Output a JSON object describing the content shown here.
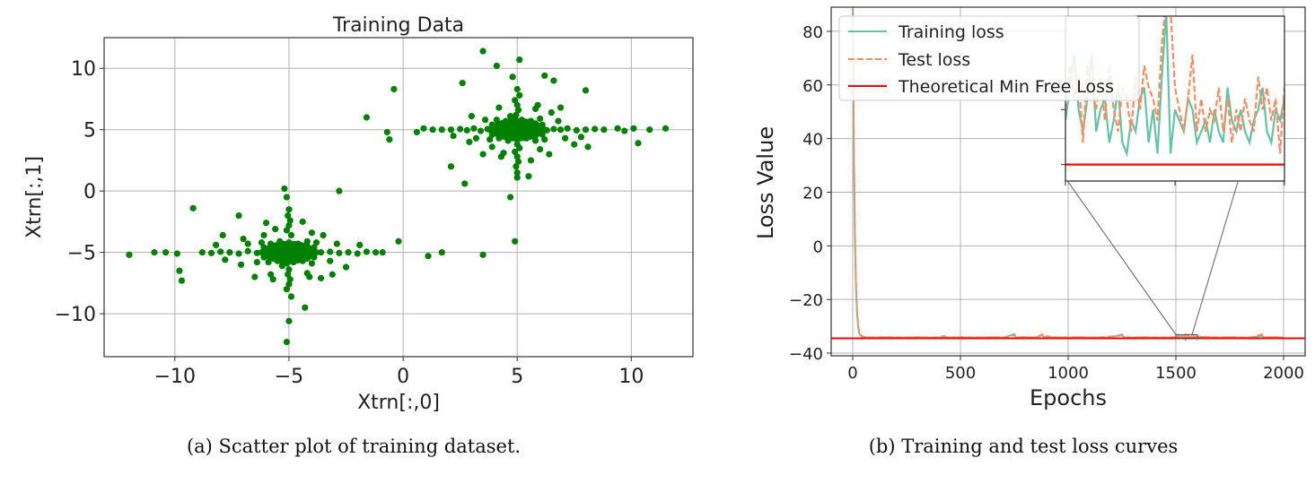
{
  "chart_data": [
    {
      "type": "scatter",
      "title": "Training Data",
      "xlabel": "Xtrn[:,0]",
      "ylabel": "Xtrn[:,1]",
      "caption": "(a) Scatter plot of training dataset.",
      "xlim": [
        -13.1,
        12.7
      ],
      "ylim": [
        -13.5,
        12.5
      ],
      "xticks": [
        -10,
        -5,
        0,
        5,
        10
      ],
      "yticks": [
        10,
        5,
        0,
        -5,
        -10
      ],
      "xtick_labels": [
        "−10",
        "−5",
        "0",
        "5",
        "10"
      ],
      "ytick_labels": [
        "10",
        "5",
        "0",
        "−5",
        "−10"
      ],
      "grid": true,
      "color": "#008000",
      "points": [
        [
          3.5,
          11.4
        ],
        [
          5.1,
          10.7
        ],
        [
          4.1,
          10.2
        ],
        [
          6.2,
          9.4
        ],
        [
          6.6,
          9.0
        ],
        [
          -0.4,
          8.3
        ],
        [
          8.0,
          8.2
        ],
        [
          2.6,
          8.8
        ],
        [
          -1.6,
          6.0
        ],
        [
          10.8,
          5.0
        ],
        [
          11.5,
          5.1
        ],
        [
          10.3,
          3.9
        ],
        [
          10.1,
          5.1
        ],
        [
          -0.6,
          4.2
        ],
        [
          -0.7,
          4.8
        ],
        [
          0.6,
          4.8
        ],
        [
          2.1,
          2.0
        ],
        [
          2.7,
          0.6
        ],
        [
          4.7,
          -0.5
        ],
        [
          4.9,
          -4.1
        ],
        [
          5.0,
          1.1
        ],
        [
          5.5,
          1.2
        ],
        [
          0.9,
          5.1
        ],
        [
          1.3,
          5.0
        ],
        [
          1.7,
          5.0
        ],
        [
          2.1,
          5.0
        ],
        [
          2.5,
          5.05
        ],
        [
          2.8,
          4.95
        ],
        [
          3.1,
          5.1
        ],
        [
          3.4,
          4.9
        ],
        [
          3.7,
          5.05
        ],
        [
          4.0,
          5.0
        ],
        [
          6.0,
          5.0
        ],
        [
          6.3,
          4.95
        ],
        [
          6.6,
          5.05
        ],
        [
          6.9,
          5.0
        ],
        [
          7.2,
          5.1
        ],
        [
          7.6,
          4.95
        ],
        [
          8.0,
          5.0
        ],
        [
          8.4,
          5.05
        ],
        [
          8.8,
          5.0
        ],
        [
          9.4,
          5.1
        ],
        [
          9.7,
          4.9
        ],
        [
          5.0,
          1.5
        ],
        [
          4.95,
          2.0
        ],
        [
          5.05,
          2.4
        ],
        [
          5.0,
          2.8
        ],
        [
          4.9,
          3.2
        ],
        [
          5.1,
          3.5
        ],
        [
          5.0,
          3.8
        ],
        [
          4.95,
          6.2
        ],
        [
          5.05,
          6.6
        ],
        [
          5.0,
          7.0
        ],
        [
          4.9,
          7.4
        ],
        [
          5.1,
          7.8
        ],
        [
          5.0,
          8.3
        ],
        [
          4.8,
          9.3
        ],
        [
          3.8,
          4.2
        ],
        [
          4.2,
          4.3
        ],
        [
          4.6,
          4.1
        ],
        [
          5.0,
          4.2
        ],
        [
          5.4,
          4.3
        ],
        [
          5.8,
          4.1
        ],
        [
          6.2,
          4.2
        ],
        [
          3.9,
          4.6
        ],
        [
          4.2,
          4.7
        ],
        [
          4.6,
          4.5
        ],
        [
          5.0,
          4.6
        ],
        [
          5.4,
          4.7
        ],
        [
          5.8,
          4.5
        ],
        [
          6.1,
          4.6
        ],
        [
          3.8,
          5.0
        ],
        [
          4.3,
          5.1
        ],
        [
          4.6,
          4.9
        ],
        [
          5.0,
          5.0
        ],
        [
          5.4,
          5.1
        ],
        [
          5.7,
          4.9
        ],
        [
          6.2,
          5.0
        ],
        [
          3.9,
          5.4
        ],
        [
          4.2,
          5.3
        ],
        [
          4.6,
          5.5
        ],
        [
          5.0,
          5.4
        ],
        [
          5.4,
          5.3
        ],
        [
          5.8,
          5.5
        ],
        [
          6.1,
          5.4
        ],
        [
          4.1,
          5.8
        ],
        [
          4.5,
          5.7
        ],
        [
          4.9,
          5.9
        ],
        [
          5.2,
          5.8
        ],
        [
          5.6,
          5.7
        ],
        [
          6.0,
          5.9
        ],
        [
          4.7,
          6.1
        ],
        [
          3.2,
          4.3
        ],
        [
          3.6,
          5.8
        ],
        [
          6.8,
          5.7
        ],
        [
          7.1,
          4.3
        ],
        [
          6.5,
          6.4
        ],
        [
          3.9,
          3.6
        ],
        [
          6.0,
          3.4
        ],
        [
          4.2,
          6.8
        ],
        [
          5.9,
          7.0
        ],
        [
          2.9,
          4.0
        ],
        [
          7.5,
          3.8
        ],
        [
          3.0,
          6.1
        ],
        [
          6.9,
          6.8
        ],
        [
          4.3,
          2.8
        ],
        [
          5.6,
          2.5
        ],
        [
          7.8,
          4.4
        ],
        [
          8.1,
          3.6
        ],
        [
          2.2,
          4.5
        ],
        [
          4.4,
          3.1
        ],
        [
          5.8,
          6.7
        ],
        [
          3.5,
          3.0
        ],
        [
          6.4,
          3.0
        ],
        [
          -12.0,
          -5.2
        ],
        [
          -10.9,
          -5.0
        ],
        [
          -10.4,
          -5.0
        ],
        [
          -9.9,
          -5.1
        ],
        [
          -9.2,
          -1.4
        ],
        [
          -9.8,
          -6.5
        ],
        [
          -9.7,
          -7.3
        ],
        [
          -7.2,
          -2.0
        ],
        [
          -5.1,
          -0.5
        ],
        [
          -2.8,
          0.0
        ],
        [
          -0.2,
          -4.1
        ],
        [
          1.1,
          -5.3
        ],
        [
          1.7,
          -5.0
        ],
        [
          3.5,
          -5.2
        ],
        [
          -5.1,
          -12.3
        ],
        [
          -5.0,
          -10.6
        ],
        [
          -4.3,
          -9.5
        ],
        [
          -5.2,
          0.2
        ],
        [
          -8.8,
          -5.0
        ],
        [
          -8.4,
          -5.05
        ],
        [
          -8.0,
          -4.95
        ],
        [
          -7.6,
          -5.0
        ],
        [
          -7.2,
          -5.1
        ],
        [
          -6.8,
          -4.9
        ],
        [
          -6.4,
          -5.05
        ],
        [
          -3.6,
          -5.0
        ],
        [
          -3.2,
          -4.95
        ],
        [
          -2.8,
          -5.05
        ],
        [
          -2.4,
          -5.0
        ],
        [
          -2.0,
          -5.1
        ],
        [
          -1.6,
          -4.95
        ],
        [
          -1.2,
          -5.0
        ],
        [
          -0.9,
          -5.0
        ],
        [
          -5.0,
          -1.5
        ],
        [
          -5.05,
          -2.0
        ],
        [
          -4.95,
          -2.4
        ],
        [
          -5.0,
          -2.8
        ],
        [
          -5.1,
          -3.2
        ],
        [
          -4.9,
          -3.6
        ],
        [
          -5.0,
          -6.4
        ],
        [
          -5.05,
          -6.8
        ],
        [
          -4.95,
          -7.2
        ],
        [
          -5.0,
          -7.6
        ],
        [
          -5.1,
          -8.0
        ],
        [
          -4.9,
          -8.6
        ],
        [
          -6.2,
          -4.2
        ],
        [
          -5.8,
          -4.3
        ],
        [
          -5.4,
          -4.1
        ],
        [
          -5.0,
          -4.2
        ],
        [
          -4.6,
          -4.3
        ],
        [
          -4.2,
          -4.1
        ],
        [
          -3.8,
          -4.2
        ],
        [
          -6.1,
          -4.6
        ],
        [
          -5.8,
          -4.7
        ],
        [
          -5.4,
          -4.5
        ],
        [
          -5.0,
          -4.6
        ],
        [
          -4.6,
          -4.7
        ],
        [
          -4.2,
          -4.5
        ],
        [
          -3.9,
          -4.6
        ],
        [
          -6.2,
          -5.0
        ],
        [
          -5.7,
          -5.1
        ],
        [
          -5.4,
          -4.9
        ],
        [
          -5.0,
          -5.0
        ],
        [
          -4.6,
          -5.1
        ],
        [
          -4.3,
          -4.9
        ],
        [
          -3.8,
          -5.0
        ],
        [
          -6.1,
          -5.4
        ],
        [
          -5.8,
          -5.3
        ],
        [
          -5.4,
          -5.5
        ],
        [
          -5.0,
          -5.4
        ],
        [
          -4.6,
          -5.3
        ],
        [
          -4.2,
          -5.5
        ],
        [
          -3.9,
          -5.4
        ],
        [
          -5.9,
          -5.8
        ],
        [
          -5.5,
          -5.7
        ],
        [
          -5.1,
          -5.9
        ],
        [
          -4.8,
          -5.8
        ],
        [
          -4.4,
          -5.7
        ],
        [
          -4.0,
          -5.9
        ],
        [
          -5.3,
          -6.1
        ],
        [
          -6.8,
          -4.3
        ],
        [
          -6.4,
          -5.8
        ],
        [
          -3.2,
          -5.7
        ],
        [
          -2.9,
          -4.3
        ],
        [
          -3.5,
          -3.6
        ],
        [
          -6.1,
          -3.6
        ],
        [
          -4.0,
          -3.4
        ],
        [
          -5.8,
          -6.8
        ],
        [
          -4.1,
          -7.0
        ],
        [
          -7.1,
          -6.0
        ],
        [
          -2.5,
          -6.2
        ],
        [
          -7.0,
          -3.9
        ],
        [
          -3.1,
          -6.8
        ],
        [
          -5.7,
          -7.2
        ],
        [
          -4.4,
          -2.5
        ],
        [
          -8.2,
          -4.4
        ],
        [
          -7.9,
          -3.6
        ],
        [
          -7.8,
          -5.6
        ],
        [
          -5.6,
          -3.1
        ],
        [
          -4.2,
          -6.7
        ],
        [
          -6.5,
          -7.0
        ],
        [
          -3.6,
          -7.1
        ],
        [
          -6.0,
          -2.6
        ],
        [
          -1.9,
          -4.4
        ]
      ]
    },
    {
      "type": "line",
      "title": "",
      "xlabel": "Epochs",
      "ylabel": "Loss Value",
      "caption": "(b) Training and test loss curves",
      "xlim": [
        -100,
        2100
      ],
      "ylim": [
        -41,
        89
      ],
      "xticks": [
        0,
        500,
        1000,
        1500,
        2000
      ],
      "yticks": [
        80,
        60,
        40,
        20,
        0,
        -20,
        -40
      ],
      "xtick_labels": [
        "0",
        "500",
        "1000",
        "1500",
        "2000"
      ],
      "ytick_labels": [
        "80",
        "60",
        "40",
        "20",
        "0",
        "−20",
        "−40"
      ],
      "grid": true,
      "legend_placement": "upper-left",
      "theoretical_min": -34.5,
      "series": [
        {
          "name": "Training loss",
          "color": "#66c2a5",
          "style": "solid",
          "x": [
            0,
            3,
            6,
            10,
            15,
            20,
            25,
            30,
            40,
            50,
            60,
            80,
            100,
            150,
            200,
            250,
            300,
            350,
            400,
            420,
            450,
            500,
            550,
            600,
            650,
            700,
            750,
            760,
            800,
            850,
            880,
            890,
            900,
            950,
            1000,
            1050,
            1100,
            1150,
            1200,
            1250,
            1260,
            1300,
            1350,
            1400,
            1450,
            1500,
            1700,
            1750,
            1800,
            1850,
            1900,
            1910,
            1950,
            2000
          ],
          "y": [
            95,
            60,
            30,
            5,
            -15,
            -25,
            -30,
            -32.5,
            -33.8,
            -34.0,
            -34.1,
            -34.2,
            -34.2,
            -34.1,
            -34.2,
            -34.2,
            -34.1,
            -34.2,
            -34.2,
            -33.8,
            -34.2,
            -34.1,
            -34.2,
            -34.2,
            -34.1,
            -34.2,
            -32.9,
            -34.2,
            -34.1,
            -34.2,
            -33.3,
            -34.2,
            -34.1,
            -34.2,
            -34.2,
            -34.1,
            -34.2,
            -34.2,
            -34.1,
            -33.0,
            -34.2,
            -34.2,
            -34.1,
            -34.2,
            -34.2,
            -34.1,
            -34.2,
            -34.1,
            -34.2,
            -34.2,
            -33.5,
            -34.2,
            -34.1,
            -34.2
          ]
        },
        {
          "name": "Test loss",
          "color": "#fc8d62",
          "style": "dashed",
          "x": [
            0,
            3,
            6,
            10,
            15,
            20,
            25,
            30,
            40,
            50,
            60,
            80,
            100,
            150,
            200,
            250,
            300,
            350,
            400,
            420,
            450,
            500,
            550,
            600,
            650,
            700,
            750,
            760,
            800,
            850,
            880,
            890,
            900,
            950,
            1000,
            1050,
            1100,
            1150,
            1200,
            1250,
            1260,
            1300,
            1350,
            1400,
            1450,
            1500,
            1700,
            1750,
            1800,
            1850,
            1900,
            1910,
            1950,
            2000
          ],
          "y": [
            97,
            63,
            33,
            7,
            -13,
            -24,
            -29,
            -32,
            -33.5,
            -33.9,
            -34.0,
            -34.1,
            -34.1,
            -34.0,
            -34.1,
            -34.1,
            -34.0,
            -34.1,
            -34.1,
            -33.6,
            -34.1,
            -34.0,
            -34.1,
            -34.1,
            -34.0,
            -34.1,
            -33.4,
            -34.1,
            -34.0,
            -34.1,
            -33.0,
            -34.1,
            -33.7,
            -34.1,
            -34.1,
            -34.0,
            -34.1,
            -34.1,
            -33.8,
            -33.4,
            -34.1,
            -34.1,
            -34.0,
            -34.1,
            -34.1,
            -34.0,
            -34.1,
            -34.0,
            -34.1,
            -34.1,
            -33.0,
            -34.1,
            -34.0,
            -34.1
          ]
        },
        {
          "name": "Theoretical Min Free Loss",
          "color": "#ff0000",
          "style": "solid"
        }
      ],
      "inset": {
        "xlim": [
          1500,
          1600
        ],
        "ylim": [
          -34.65,
          -33.15
        ],
        "x": [
          1500,
          1502,
          1504,
          1506,
          1508,
          1510,
          1512,
          1514,
          1516,
          1518,
          1520,
          1522,
          1524,
          1526,
          1528,
          1530,
          1532,
          1534,
          1536,
          1538,
          1540,
          1542,
          1544,
          1546,
          1548,
          1550,
          1552,
          1554,
          1556,
          1558,
          1560,
          1562,
          1564,
          1566,
          1568,
          1570,
          1572,
          1574,
          1576,
          1578,
          1580,
          1582,
          1584,
          1586,
          1588,
          1590,
          1592,
          1594,
          1596,
          1598,
          1600
        ],
        "train": [
          -34.1,
          -33.8,
          -33.5,
          -34.0,
          -34.2,
          -33.9,
          -33.5,
          -34.2,
          -34.0,
          -33.9,
          -34.3,
          -34.1,
          -33.8,
          -34.3,
          -34.4,
          -34.1,
          -34.2,
          -33.9,
          -33.8,
          -34.3,
          -34.0,
          -34.4,
          -33.7,
          -33.1,
          -34.4,
          -34.0,
          -34.1,
          -34.2,
          -33.9,
          -34.0,
          -34.3,
          -34.2,
          -34.1,
          -34.3,
          -34.0,
          -34.2,
          -34.3,
          -33.8,
          -34.1,
          -34.2,
          -34.0,
          -34.2,
          -34.3,
          -34.1,
          -34.0,
          -33.8,
          -34.2,
          -34.3,
          -34.0,
          -34.1,
          -33.9
        ],
        "test": [
          -34.0,
          -33.6,
          -33.9,
          -33.7,
          -34.3,
          -33.6,
          -33.8,
          -34.0,
          -33.7,
          -34.1,
          -33.6,
          -34.0,
          -34.2,
          -33.8,
          -33.9,
          -34.2,
          -33.7,
          -34.0,
          -33.6,
          -33.8,
          -33.9,
          -34.1,
          -33.4,
          -33.0,
          -33.1,
          -33.8,
          -34.0,
          -34.2,
          -33.9,
          -33.5,
          -34.2,
          -33.9,
          -34.2,
          -34.0,
          -34.1,
          -33.8,
          -34.2,
          -33.9,
          -34.3,
          -34.0,
          -34.2,
          -33.9,
          -34.1,
          -34.2,
          -33.7,
          -34.0,
          -33.8,
          -34.1,
          -33.9,
          -34.4,
          -33.8
        ]
      }
    }
  ]
}
